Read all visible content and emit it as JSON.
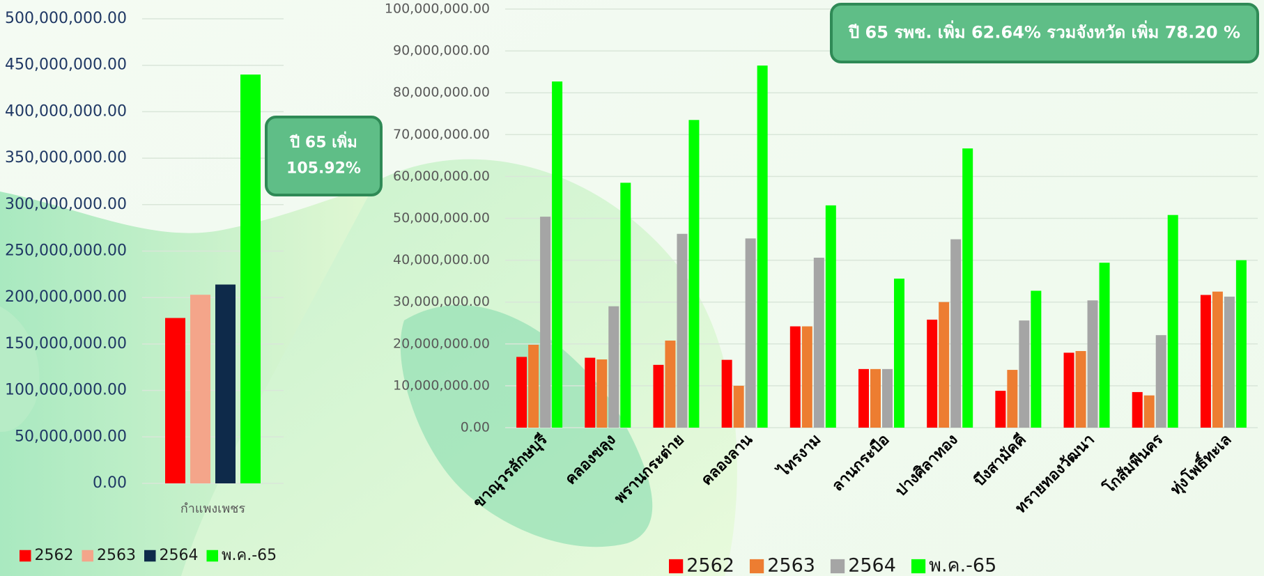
{
  "chart_data": [
    {
      "type": "bar",
      "categories": [
        "กำแพงเพชร"
      ],
      "series": [
        {
          "name": "2562",
          "color": "#ff0000",
          "values": [
            178000000
          ]
        },
        {
          "name": "2563",
          "color": "#f4a58a",
          "values": [
            203000000
          ]
        },
        {
          "name": "2564",
          "color": "#0e2a4a",
          "values": [
            214000000
          ]
        },
        {
          "name": "พ.ค.-65",
          "color": "#00ff00",
          "values": [
            440000000
          ]
        }
      ],
      "ylim": [
        0,
        500000000
      ],
      "yticks": [
        {
          "value": 0,
          "label": "0.00"
        },
        {
          "value": 50000000,
          "label": "50,000,000.00"
        },
        {
          "value": 100000000,
          "label": "100,000,000.00"
        },
        {
          "value": 150000000,
          "label": "150,000,000.00"
        },
        {
          "value": 200000000,
          "label": "200,000,000.00"
        },
        {
          "value": 250000000,
          "label": "250,000,000.00"
        },
        {
          "value": 300000000,
          "label": "300,000,000.00"
        },
        {
          "value": 350000000,
          "label": "350,000,000.00"
        },
        {
          "value": 400000000,
          "label": "400,000,000.00"
        },
        {
          "value": 450000000,
          "label": "450,000,000.00"
        },
        {
          "value": 500000000,
          "label": "500,000,000.00"
        }
      ],
      "grid": true,
      "annotation": [
        "ปี 65 เพิ่ม",
        "105.92%"
      ]
    },
    {
      "type": "bar",
      "categories": [
        "ขาณุวรลักษบุรี",
        "คลองขลุง",
        "พรานกระต่าย",
        "คลองลาน",
        "ไทรงาม",
        "ลานกระบือ",
        "ปางศิลาทอง",
        "บึงสามัคคี",
        "ทรายทองวัฒนา",
        "โกสัมพีนคร",
        "ทุ่งโพธิ์ทะเล"
      ],
      "series": [
        {
          "name": "2562",
          "color": "#ff0000",
          "values": [
            16900000,
            16700000,
            15000000,
            16200000,
            24200000,
            14000000,
            25800000,
            8800000,
            17900000,
            8500000,
            31700000
          ]
        },
        {
          "name": "2563",
          "color": "#ed7d31",
          "values": [
            19800000,
            16300000,
            20800000,
            10000000,
            24200000,
            14000000,
            30000000,
            13800000,
            18300000,
            7700000,
            32500000
          ]
        },
        {
          "name": "2564",
          "color": "#a5a5a5",
          "values": [
            50400000,
            29000000,
            46300000,
            45200000,
            40600000,
            14000000,
            45000000,
            25600000,
            30400000,
            22100000,
            31300000
          ]
        },
        {
          "name": "พ.ค.-65",
          "color": "#00ff00",
          "values": [
            82700000,
            58500000,
            73500000,
            86500000,
            53100000,
            35600000,
            66700000,
            32700000,
            39400000,
            50800000,
            40000000
          ]
        }
      ],
      "ylim": [
        0,
        100000000
      ],
      "yticks": [
        {
          "value": 0,
          "label": "0.00"
        },
        {
          "value": 10000000,
          "label": "10,000,000.00"
        },
        {
          "value": 20000000,
          "label": "20,000,000.00"
        },
        {
          "value": 30000000,
          "label": "30,000,000.00"
        },
        {
          "value": 40000000,
          "label": "40,000,000.00"
        },
        {
          "value": 50000000,
          "label": "50,000,000.00"
        },
        {
          "value": 60000000,
          "label": "60,000,000.00"
        },
        {
          "value": 70000000,
          "label": "70,000,000.00"
        },
        {
          "value": 80000000,
          "label": "80,000,000.00"
        },
        {
          "value": 90000000,
          "label": "90,000,000.00"
        },
        {
          "value": 100000000,
          "label": "100,000,000.00"
        }
      ],
      "grid": true,
      "annotation": [
        "ปี 65  รพช. เพิ่ม 62.64% รวมจังหวัด เพิ่ม 78.20 %"
      ]
    }
  ]
}
